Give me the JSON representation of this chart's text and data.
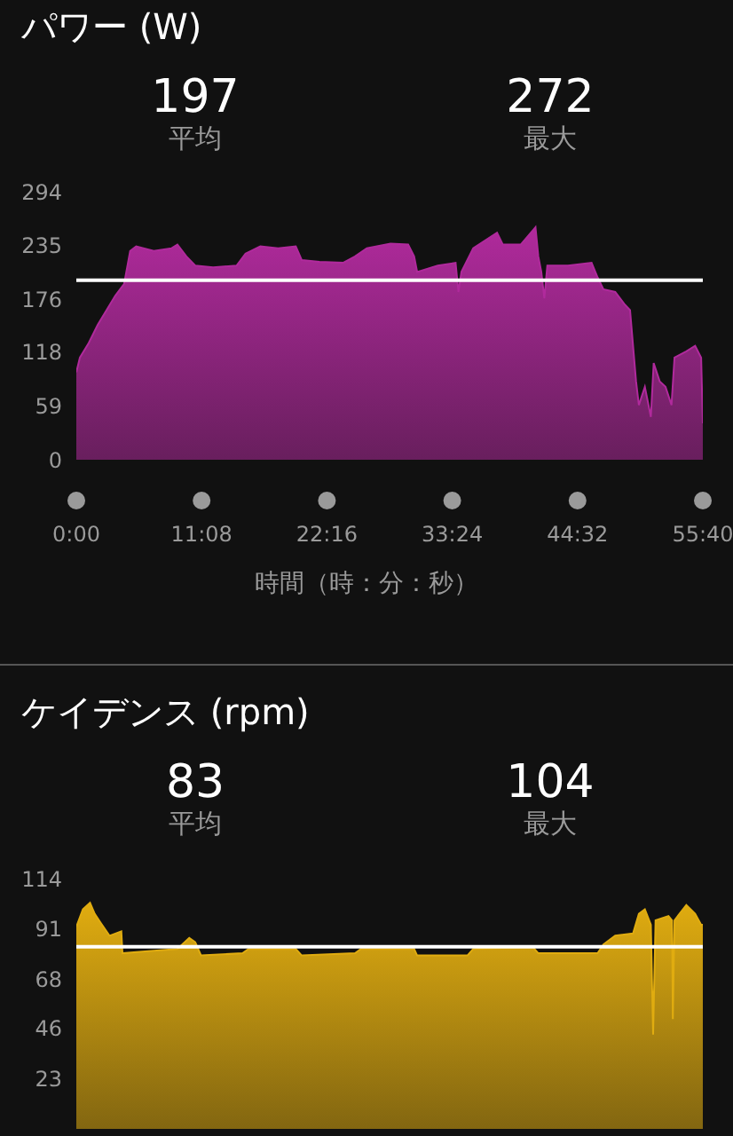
{
  "chart_data": [
    {
      "type": "area",
      "title": "パワー (W)",
      "xlabel": "時間（時：分：秒）",
      "annotations": [
        "197",
        "平均",
        "272",
        "最大"
      ],
      "x": [
        0,
        19,
        66,
        114,
        161,
        208,
        255,
        287,
        319,
        413,
        508,
        539,
        587,
        634,
        729,
        855,
        902,
        981,
        1076,
        1170,
        1202,
        1296,
        1422,
        1486,
        1549,
        1675,
        1769,
        1801,
        1817,
        1927,
        2022,
        2037,
        2053,
        2116,
        2243,
        2274,
        2369,
        2448,
        2463,
        2479,
        2495,
        2511,
        2621,
        2747,
        2779,
        2810,
        2873,
        2921,
        2952,
        2984,
        2999,
        3031,
        3063,
        3078,
        3110,
        3141,
        3173,
        3189,
        3252,
        3299,
        3331,
        3340
      ],
      "series": [
        {
          "color": "#b02a9c",
          "values": [
            96,
            112,
            128,
            148,
            164,
            180,
            193,
            229,
            234,
            229,
            232,
            236,
            223,
            213,
            211,
            213,
            226,
            234,
            232,
            234,
            219,
            217,
            216,
            223,
            232,
            237,
            236,
            223,
            206,
            213,
            216,
            184,
            206,
            232,
            249,
            236,
            236,
            255,
            223,
            206,
            177,
            213,
            213,
            216,
            200,
            187,
            184,
            171,
            164,
            86,
            60,
            80,
            47,
            106,
            86,
            80,
            60,
            112,
            119,
            125,
            112,
            40
          ]
        }
      ],
      "xlim": [
        0,
        3340
      ],
      "xticks": [
        {
          "value": 0,
          "label": "0:00"
        },
        {
          "value": 668,
          "label": "11:08"
        },
        {
          "value": 1336,
          "label": "22:16"
        },
        {
          "value": 2004,
          "label": "33:24"
        },
        {
          "value": 2672,
          "label": "44:32"
        },
        {
          "value": 3340,
          "label": "55:40"
        }
      ],
      "ylim": [
        0,
        294
      ],
      "yticks": [
        0,
        59,
        118,
        176,
        235,
        294
      ],
      "ref_lines": [
        {
          "axis": "y",
          "value": 197,
          "color": "#ffffff"
        }
      ],
      "grid": false,
      "legend": false
    },
    {
      "type": "area",
      "title": "ケイデンス (rpm)",
      "annotations": [
        "83",
        "平均",
        "104",
        "最大"
      ],
      "x": [
        0,
        35,
        73,
        98,
        129,
        177,
        240,
        246,
        382,
        539,
        602,
        634,
        665,
        886,
        918,
        1170,
        1202,
        1486,
        1517,
        1801,
        1817,
        2085,
        2116,
        2432,
        2463,
        2779,
        2810,
        2873,
        2968,
        2999,
        3031,
        3063,
        3075,
        3088,
        3157,
        3176,
        3180,
        3189,
        3252,
        3299,
        3331,
        3340
      ],
      "series": [
        {
          "color": "#e0ac10",
          "values": [
            92,
            100,
            103,
            98,
            94,
            88,
            90,
            80,
            81,
            82,
            87,
            85,
            79,
            80,
            82,
            82,
            79,
            80,
            82,
            82,
            79,
            79,
            82,
            83,
            80,
            80,
            84,
            88,
            89,
            98,
            100,
            93,
            43,
            95,
            97,
            95,
            50,
            95,
            102,
            98,
            93,
            93
          ]
        }
      ],
      "xlim": [
        0,
        3340
      ],
      "ylim": [
        0,
        114
      ],
      "yticks": [
        23,
        46,
        68,
        91,
        114
      ],
      "ref_lines": [
        {
          "axis": "y",
          "value": 83,
          "color": "#ffffff"
        }
      ],
      "tick_labels": "y",
      "grid": false,
      "legend": false
    }
  ]
}
